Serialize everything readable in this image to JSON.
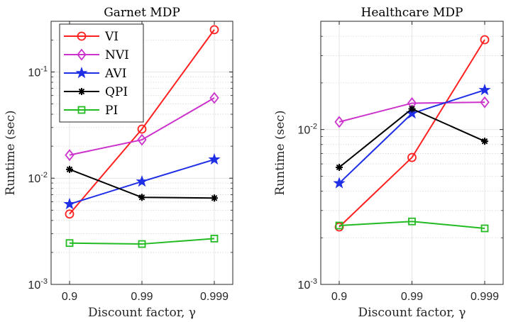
{
  "chart_data": [
    {
      "type": "line",
      "title": "Garnet MDP",
      "xlabel": "Discount factor, γ",
      "ylabel": "Runtime (sec)",
      "x_scale": "categorical",
      "y_scale": "log",
      "ylim": [
        0.001,
        0.3
      ],
      "grid": true,
      "legend_position": "top-left",
      "categories": [
        "0.9",
        "0.99",
        "0.999"
      ],
      "y_ticks": [
        {
          "value": 0.001,
          "base": "10",
          "exp": "-3"
        },
        {
          "value": 0.01,
          "base": "10",
          "exp": "-2"
        },
        {
          "value": 0.1,
          "base": "10",
          "exp": "-1"
        }
      ],
      "series": [
        {
          "name": "VI",
          "color": "#ff2020",
          "marker": "circle",
          "values": [
            0.0046,
            0.029,
            0.25
          ]
        },
        {
          "name": "NVI",
          "color": "#cc33cc",
          "marker": "diamond",
          "values": [
            0.0165,
            0.023,
            0.057
          ]
        },
        {
          "name": "AVI",
          "color": "#1f2fe6",
          "marker": "star",
          "values": [
            0.0057,
            0.0093,
            0.015
          ]
        },
        {
          "name": "QPI",
          "color": "#000000",
          "marker": "asterisk",
          "values": [
            0.0121,
            0.0066,
            0.0065
          ]
        },
        {
          "name": "PI",
          "color": "#22bb22",
          "marker": "square",
          "values": [
            0.00245,
            0.0024,
            0.0027
          ]
        }
      ]
    },
    {
      "type": "line",
      "title": "Healthcare MDP",
      "xlabel": "Discount factor, γ",
      "ylabel": "Runtime (sec)",
      "x_scale": "categorical",
      "y_scale": "log",
      "ylim": [
        0.001,
        0.05
      ],
      "grid": true,
      "categories": [
        "0.9",
        "0.99",
        "0.999"
      ],
      "y_ticks": [
        {
          "value": 0.001,
          "base": "10",
          "exp": "-3"
        },
        {
          "value": 0.01,
          "base": "10",
          "exp": "-2"
        }
      ],
      "series": [
        {
          "name": "VI",
          "color": "#ff2020",
          "marker": "circle",
          "values": [
            0.00235,
            0.0066,
            0.038
          ]
        },
        {
          "name": "NVI",
          "color": "#cc33cc",
          "marker": "diamond",
          "values": [
            0.0112,
            0.0148,
            0.015
          ]
        },
        {
          "name": "AVI",
          "color": "#1f2fe6",
          "marker": "star",
          "values": [
            0.0045,
            0.0127,
            0.018
          ]
        },
        {
          "name": "QPI",
          "color": "#000000",
          "marker": "asterisk",
          "values": [
            0.0057,
            0.0136,
            0.0084
          ]
        },
        {
          "name": "PI",
          "color": "#22bb22",
          "marker": "square",
          "values": [
            0.0024,
            0.00255,
            0.0023
          ]
        }
      ]
    }
  ]
}
